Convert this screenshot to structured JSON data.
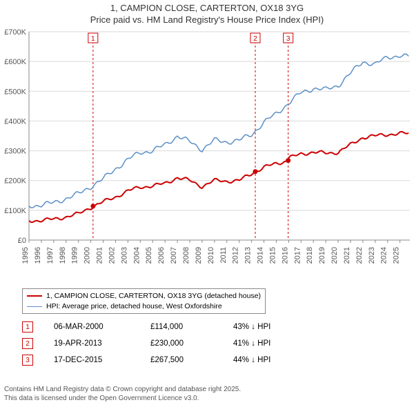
{
  "title_line1": "1, CAMPION CLOSE, CARTERTON, OX18 3YG",
  "title_line2": "Price paid vs. HM Land Registry's House Price Index (HPI)",
  "chart": {
    "type": "line",
    "background_color": "#ffffff",
    "plot_border_color": "#888888",
    "grid_color": "#d9d9d9",
    "x": {
      "start_year": 1995,
      "end_year": 2025.8,
      "ticks": [
        1995,
        1996,
        1997,
        1998,
        1999,
        2000,
        2001,
        2002,
        2003,
        2004,
        2005,
        2006,
        2007,
        2008,
        2009,
        2010,
        2011,
        2012,
        2013,
        2014,
        2015,
        2016,
        2017,
        2018,
        2019,
        2020,
        2021,
        2022,
        2023,
        2024,
        2025
      ],
      "tick_fontsize": 11
    },
    "y": {
      "min": 0,
      "max": 700000,
      "ticks": [
        0,
        100000,
        200000,
        300000,
        400000,
        500000,
        600000,
        700000
      ],
      "tick_labels": [
        "£0",
        "£100K",
        "£200K",
        "£300K",
        "£400K",
        "£500K",
        "£600K",
        "£700K"
      ],
      "tick_fontsize": 11
    },
    "series": [
      {
        "name": "price_paid",
        "label": "1, CAMPION CLOSE, CARTERTON, OX18 3YG (detached house)",
        "color": "#cc0000",
        "line_width": 2,
        "values_by_year": {
          "1995": 65000,
          "1996": 66000,
          "1997": 70000,
          "1998": 78000,
          "1999": 88000,
          "2000.2": 114000,
          "2001": 128000,
          "2002": 145000,
          "2003": 165000,
          "2004": 178000,
          "2005": 182000,
          "2006": 190000,
          "2007": 210000,
          "2008": 200000,
          "2009": 180000,
          "2010": 200000,
          "2011": 198000,
          "2012": 200000,
          "2013.3": 230000,
          "2014": 245000,
          "2015.96": 267500,
          "2016": 275000,
          "2017": 290000,
          "2018": 295000,
          "2019": 292000,
          "2020": 295000,
          "2021": 320000,
          "2022": 345000,
          "2023": 350000,
          "2024": 355000,
          "2025": 358000,
          "2025.7": 358000
        }
      },
      {
        "name": "hpi",
        "label": "HPI: Average price, detached house, West Oxfordshire",
        "color": "#5b8fc7",
        "line_width": 1.5,
        "values_by_year": {
          "1995": 115000,
          "1996": 118000,
          "1997": 125000,
          "1998": 140000,
          "1999": 155000,
          "2000": 180000,
          "2001": 205000,
          "2002": 240000,
          "2003": 270000,
          "2004": 295000,
          "2005": 300000,
          "2006": 320000,
          "2007": 350000,
          "2008": 330000,
          "2009": 305000,
          "2010": 335000,
          "2011": 330000,
          "2012": 335000,
          "2013": 355000,
          "2014": 395000,
          "2015": 425000,
          "2016": 460000,
          "2017": 495000,
          "2018": 510000,
          "2019": 505000,
          "2020": 520000,
          "2021": 560000,
          "2022": 600000,
          "2023": 590000,
          "2024": 615000,
          "2025": 620000,
          "2025.7": 615000
        }
      }
    ],
    "markers": [
      {
        "id": "1",
        "year": 2000.18,
        "value": 114000,
        "color": "#cc0000",
        "line_color": "#cc0000"
      },
      {
        "id": "2",
        "year": 2013.3,
        "value": 230000,
        "color": "#cc0000",
        "line_color": "#cc0000"
      },
      {
        "id": "3",
        "year": 2015.96,
        "value": 267500,
        "color": "#cc0000",
        "line_color": "#cc0000"
      }
    ],
    "marker_label_y_offset": 12
  },
  "legend": {
    "border_color": "#888888",
    "fontsize": 10.5,
    "items": [
      {
        "color": "#cc0000",
        "width": 2,
        "label": "1, CAMPION CLOSE, CARTERTON, OX18 3YG (detached house)"
      },
      {
        "color": "#5b8fc7",
        "width": 1.5,
        "label": "HPI: Average price, detached house, West Oxfordshire"
      }
    ]
  },
  "transactions": {
    "badge_border_color": "#cc0000",
    "badge_text_color": "#cc0000",
    "rows": [
      {
        "id": "1",
        "date": "06-MAR-2000",
        "price": "£114,000",
        "diff": "43% ↓ HPI"
      },
      {
        "id": "2",
        "date": "19-APR-2013",
        "price": "£230,000",
        "diff": "41% ↓ HPI"
      },
      {
        "id": "3",
        "date": "17-DEC-2015",
        "price": "£267,500",
        "diff": "44% ↓ HPI"
      }
    ]
  },
  "footer_line1": "Contains HM Land Registry data © Crown copyright and database right 2025.",
  "footer_line2": "This data is licensed under the Open Government Licence v3.0."
}
